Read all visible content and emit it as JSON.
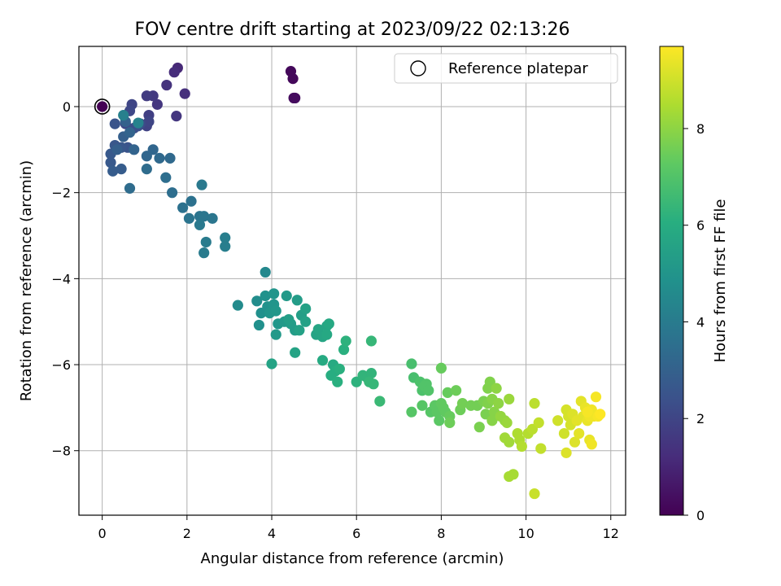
{
  "chart_data": {
    "type": "scatter",
    "title": "FOV centre drift starting at 2023/09/22 02:13:26",
    "xlabel": "Angular distance from reference (arcmin)",
    "ylabel": "Rotation from reference (arcmin)",
    "xlim": [
      -0.55,
      12.35
    ],
    "ylim": [
      -9.5,
      1.4
    ],
    "xticks": [
      0,
      2,
      4,
      6,
      8,
      10,
      12
    ],
    "yticks": [
      0,
      -2,
      -4,
      -6,
      -8
    ],
    "grid": true,
    "legend": {
      "placement": "upper right",
      "entries": [
        "Reference platepar"
      ]
    },
    "reference_point": {
      "x": 0,
      "y": 0
    },
    "colorbar": {
      "label": "Hours from first FF file",
      "colormap": "viridis",
      "range": [
        0,
        9.7
      ],
      "ticks": [
        0,
        2,
        4,
        6,
        8
      ]
    },
    "points": [
      [
        0,
        0,
        0
      ],
      [
        4.45,
        0.82,
        0.2
      ],
      [
        4.5,
        0.65,
        0.2
      ],
      [
        4.55,
        0.2,
        0.3
      ],
      [
        4.52,
        0.2,
        0.3
      ],
      [
        1.78,
        0.9,
        1.1
      ],
      [
        1.7,
        0.8,
        1.2
      ],
      [
        1.95,
        0.3,
        1.3
      ],
      [
        1.52,
        0.5,
        1.4
      ],
      [
        1.3,
        0.05,
        1.5
      ],
      [
        1.75,
        -0.22,
        1.5
      ],
      [
        1.2,
        0.25,
        1.6
      ],
      [
        1.05,
        0.25,
        1.7
      ],
      [
        1.1,
        -0.2,
        1.8
      ],
      [
        1.05,
        -0.45,
        1.9
      ],
      [
        1.1,
        -0.35,
        2.0
      ],
      [
        0.7,
        0.05,
        2.0
      ],
      [
        0.65,
        -0.1,
        2.1
      ],
      [
        0.55,
        -0.4,
        2.1
      ],
      [
        0.9,
        -0.4,
        2.2
      ],
      [
        0.75,
        -0.5,
        2.3
      ],
      [
        0.85,
        -0.45,
        2.4
      ],
      [
        0.3,
        -0.4,
        2.5
      ],
      [
        0.6,
        -0.95,
        2.5
      ],
      [
        0.3,
        -0.9,
        2.6
      ],
      [
        0.45,
        -0.95,
        2.6
      ],
      [
        0.2,
        -1.1,
        2.7
      ],
      [
        0.2,
        -1.3,
        2.7
      ],
      [
        0.25,
        -1.5,
        2.8
      ],
      [
        0.45,
        -1.45,
        2.8
      ],
      [
        0.35,
        -1.0,
        2.9
      ],
      [
        0.5,
        -0.7,
        2.9
      ],
      [
        0.55,
        -0.35,
        3.0
      ],
      [
        0.65,
        -0.6,
        3.1
      ],
      [
        0.75,
        -1.0,
        3.1
      ],
      [
        1.05,
        -1.15,
        3.2
      ],
      [
        1.2,
        -1.0,
        3.2
      ],
      [
        1.35,
        -1.2,
        3.3
      ],
      [
        1.6,
        -1.2,
        3.3
      ],
      [
        1.05,
        -1.45,
        3.4
      ],
      [
        0.65,
        -1.9,
        3.4
      ],
      [
        1.5,
        -1.65,
        3.5
      ],
      [
        1.65,
        -2.0,
        3.5
      ],
      [
        1.9,
        -2.35,
        3.6
      ],
      [
        2.1,
        -2.2,
        3.6
      ],
      [
        2.05,
        -2.6,
        3.7
      ],
      [
        2.3,
        -2.55,
        3.7
      ],
      [
        2.4,
        -2.55,
        3.8
      ],
      [
        2.6,
        -2.6,
        3.8
      ],
      [
        2.35,
        -1.82,
        3.9
      ],
      [
        2.3,
        -2.75,
        3.9
      ],
      [
        2.45,
        -3.15,
        4.0
      ],
      [
        2.4,
        -3.4,
        4.0
      ],
      [
        2.9,
        -3.05,
        4.1
      ],
      [
        2.9,
        -3.25,
        4.1
      ],
      [
        0.5,
        -0.2,
        4.2
      ],
      [
        0.85,
        -0.38,
        4.3
      ],
      [
        3.85,
        -3.85,
        4.5
      ],
      [
        3.2,
        -4.62,
        4.6
      ],
      [
        3.65,
        -4.52,
        4.7
      ],
      [
        3.75,
        -4.8,
        4.8
      ],
      [
        3.7,
        -5.08,
        4.8
      ],
      [
        3.85,
        -4.4,
        4.9
      ],
      [
        3.9,
        -4.65,
        4.9
      ],
      [
        3.95,
        -4.8,
        5.0
      ],
      [
        4.05,
        -4.35,
        5.0
      ],
      [
        4.05,
        -4.6,
        5.0
      ],
      [
        4.1,
        -4.75,
        5.1
      ],
      [
        4.15,
        -5.05,
        5.1
      ],
      [
        4.1,
        -5.3,
        5.2
      ],
      [
        4.3,
        -5.0,
        5.2
      ],
      [
        4.35,
        -4.4,
        5.2
      ],
      [
        4.45,
        -5.05,
        5.3
      ],
      [
        4.55,
        -5.2,
        5.3
      ],
      [
        4.6,
        -4.5,
        5.3
      ],
      [
        4.4,
        -4.95,
        5.4
      ],
      [
        4.7,
        -4.85,
        5.4
      ],
      [
        4.65,
        -5.2,
        5.5
      ],
      [
        4.8,
        -5.0,
        5.5
      ],
      [
        4.8,
        -4.7,
        5.5
      ],
      [
        4.55,
        -5.72,
        5.6
      ],
      [
        4.0,
        -5.98,
        5.6
      ],
      [
        5.05,
        -5.3,
        5.6
      ],
      [
        5.1,
        -5.18,
        5.7
      ],
      [
        5.2,
        -5.35,
        5.7
      ],
      [
        5.3,
        -5.1,
        5.7
      ],
      [
        5.3,
        -5.3,
        5.8
      ],
      [
        5.35,
        -5.05,
        5.8
      ],
      [
        5.2,
        -5.9,
        5.9
      ],
      [
        5.45,
        -6.0,
        5.9
      ],
      [
        5.5,
        -6.15,
        6.0
      ],
      [
        5.4,
        -6.25,
        6.0
      ],
      [
        5.6,
        -6.1,
        6.1
      ],
      [
        5.55,
        -6.4,
        6.1
      ],
      [
        5.7,
        -5.65,
        6.1
      ],
      [
        5.75,
        -5.45,
        6.2
      ],
      [
        6.0,
        -6.4,
        6.2
      ],
      [
        6.15,
        -6.25,
        6.3
      ],
      [
        6.25,
        -6.3,
        6.3
      ],
      [
        6.35,
        -6.2,
        6.3
      ],
      [
        6.3,
        -6.4,
        6.4
      ],
      [
        6.4,
        -6.45,
        6.4
      ],
      [
        6.35,
        -5.45,
        6.4
      ],
      [
        6.55,
        -6.85,
        6.5
      ],
      [
        7.3,
        -5.98,
        6.8
      ],
      [
        7.35,
        -6.3,
        6.8
      ],
      [
        7.5,
        -6.4,
        6.9
      ],
      [
        7.55,
        -6.6,
        6.9
      ],
      [
        7.6,
        -6.5,
        7.0
      ],
      [
        7.65,
        -6.45,
        7.0
      ],
      [
        7.7,
        -6.6,
        7.0
      ],
      [
        7.55,
        -6.95,
        7.1
      ],
      [
        7.3,
        -7.1,
        7.1
      ],
      [
        7.75,
        -7.1,
        7.1
      ],
      [
        7.85,
        -6.95,
        7.2
      ],
      [
        7.9,
        -7.1,
        7.2
      ],
      [
        7.95,
        -7.3,
        7.2
      ],
      [
        8.0,
        -6.9,
        7.3
      ],
      [
        8.05,
        -7.0,
        7.3
      ],
      [
        8.1,
        -7.1,
        7.3
      ],
      [
        8.0,
        -6.08,
        7.4
      ],
      [
        8.15,
        -6.65,
        7.4
      ],
      [
        8.2,
        -7.2,
        7.4
      ],
      [
        8.35,
        -6.6,
        7.5
      ],
      [
        8.45,
        -7.05,
        7.5
      ],
      [
        8.2,
        -7.35,
        7.5
      ],
      [
        8.5,
        -6.9,
        7.6
      ],
      [
        8.7,
        -6.95,
        7.6
      ],
      [
        8.85,
        -6.95,
        7.6
      ],
      [
        8.9,
        -7.45,
        7.7
      ],
      [
        9.0,
        -6.85,
        7.7
      ],
      [
        9.05,
        -7.15,
        7.7
      ],
      [
        9.1,
        -6.9,
        7.8
      ],
      [
        9.1,
        -6.55,
        7.8
      ],
      [
        9.15,
        -6.4,
        7.8
      ],
      [
        9.2,
        -6.8,
        7.9
      ],
      [
        9.25,
        -7.1,
        7.9
      ],
      [
        9.2,
        -7.3,
        7.9
      ],
      [
        9.3,
        -6.55,
        8.0
      ],
      [
        9.35,
        -6.9,
        8.0
      ],
      [
        9.4,
        -7.2,
        8.1
      ],
      [
        9.5,
        -7.3,
        8.1
      ],
      [
        9.55,
        -7.35,
        8.2
      ],
      [
        9.6,
        -6.8,
        8.2
      ],
      [
        9.5,
        -7.7,
        8.3
      ],
      [
        9.6,
        -7.8,
        8.3
      ],
      [
        9.6,
        -8.6,
        8.4
      ],
      [
        9.7,
        -8.55,
        8.4
      ],
      [
        9.8,
        -7.6,
        8.5
      ],
      [
        9.85,
        -7.75,
        8.5
      ],
      [
        9.9,
        -7.9,
        8.6
      ],
      [
        10.05,
        -7.6,
        8.6
      ],
      [
        10.15,
        -7.5,
        8.7
      ],
      [
        10.2,
        -6.9,
        8.7
      ],
      [
        10.3,
        -7.35,
        8.8
      ],
      [
        10.35,
        -7.95,
        8.8
      ],
      [
        10.2,
        -9.0,
        8.9
      ],
      [
        10.75,
        -7.3,
        9.0
      ],
      [
        10.9,
        -7.6,
        9.0
      ],
      [
        10.95,
        -7.05,
        9.1
      ],
      [
        11.0,
        -7.2,
        9.1
      ],
      [
        11.05,
        -7.4,
        9.1
      ],
      [
        10.95,
        -8.05,
        9.2
      ],
      [
        11.1,
        -7.15,
        9.2
      ],
      [
        11.15,
        -7.8,
        9.2
      ],
      [
        11.2,
        -7.3,
        9.3
      ],
      [
        11.25,
        -7.6,
        9.3
      ],
      [
        11.3,
        -6.85,
        9.3
      ],
      [
        11.35,
        -7.2,
        9.3
      ],
      [
        11.4,
        -7.0,
        9.4
      ],
      [
        11.45,
        -7.3,
        9.4
      ],
      [
        11.5,
        -7.75,
        9.4
      ],
      [
        11.5,
        -7.2,
        9.5
      ],
      [
        11.55,
        -7.05,
        9.5
      ],
      [
        11.6,
        -7.2,
        9.5
      ],
      [
        11.65,
        -6.75,
        9.6
      ],
      [
        11.7,
        -7.2,
        9.6
      ],
      [
        11.75,
        -7.15,
        9.7
      ],
      [
        11.55,
        -7.85,
        9.5
      ],
      [
        11.45,
        -7.1,
        9.6
      ]
    ]
  }
}
